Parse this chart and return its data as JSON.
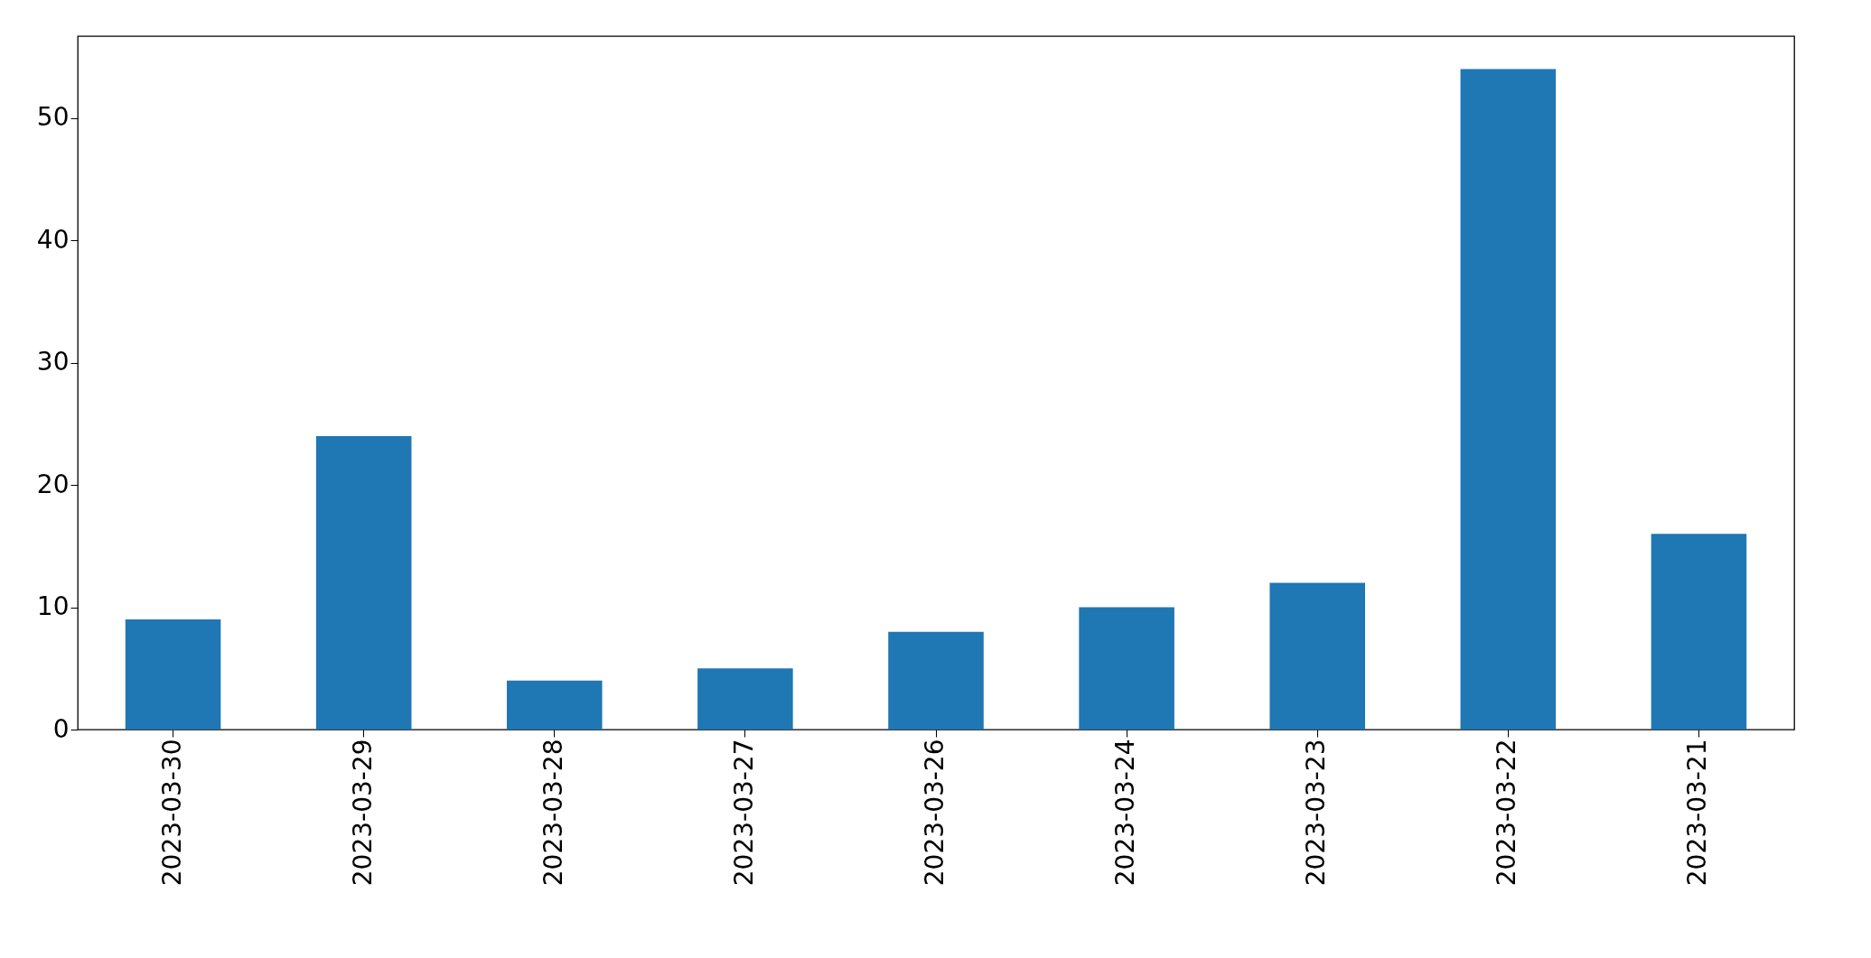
{
  "chart_data": {
    "type": "bar",
    "categories": [
      "2023-03-30",
      "2023-03-29",
      "2023-03-28",
      "2023-03-27",
      "2023-03-26",
      "2023-03-24",
      "2023-03-23",
      "2023-03-22",
      "2023-03-21"
    ],
    "values": [
      9,
      24,
      4,
      5,
      8,
      10,
      12,
      54,
      16
    ],
    "color": "#1f77b4",
    "ylim": [
      0,
      56.7
    ],
    "yticks": [
      0,
      10,
      20,
      30,
      40,
      50
    ],
    "grid": false
  }
}
